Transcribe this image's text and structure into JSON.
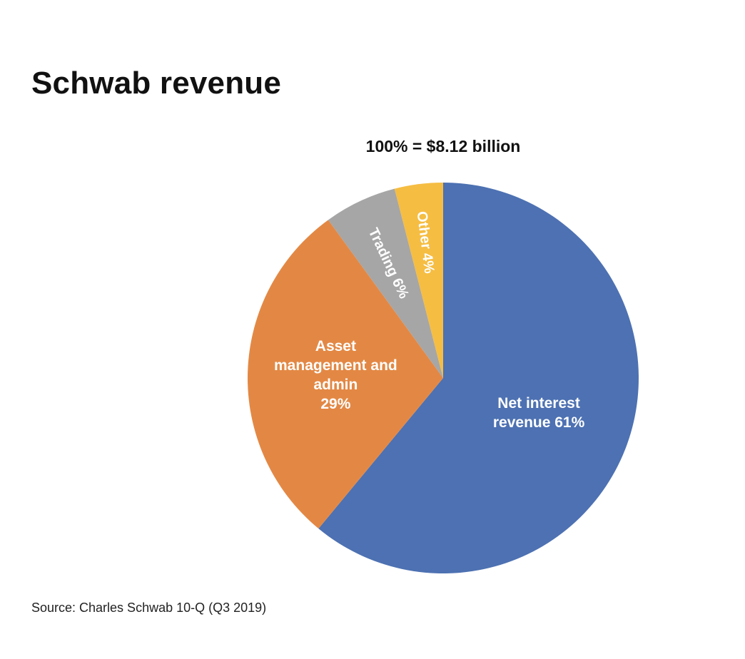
{
  "chart_data": {
    "type": "pie",
    "title": "Schwab revenue",
    "subtitle": "100% = $8.12 billion",
    "source": "Source: Charles Schwab 10-Q (Q3 2019)",
    "total": "$8.12 billion",
    "slices": [
      {
        "name": "Net interest revenue",
        "value": 61,
        "label_lines": [
          "Net interest",
          "revenue 61%"
        ],
        "color": "#4d71b2"
      },
      {
        "name": "Asset management and admin",
        "value": 29,
        "label_lines": [
          "Asset",
          "management and",
          "admin",
          "29%"
        ],
        "color": "#e38844"
      },
      {
        "name": "Trading",
        "value": 6,
        "label_lines": [
          "Trading 6%"
        ],
        "color": "#a6a6a6"
      },
      {
        "name": "Other",
        "value": 4,
        "label_lines": [
          "Other 4%"
        ],
        "color": "#f5bd42"
      }
    ]
  }
}
